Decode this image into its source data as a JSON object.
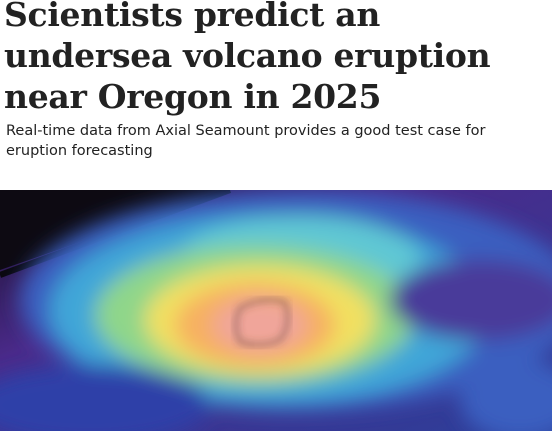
{
  "header": {
    "title": "Scientists predict an undersea volcano eruption near Oregon in 2025",
    "subtitle": "Real-time data from Axial Seamount provides a good test case for eruption forecasting"
  }
}
